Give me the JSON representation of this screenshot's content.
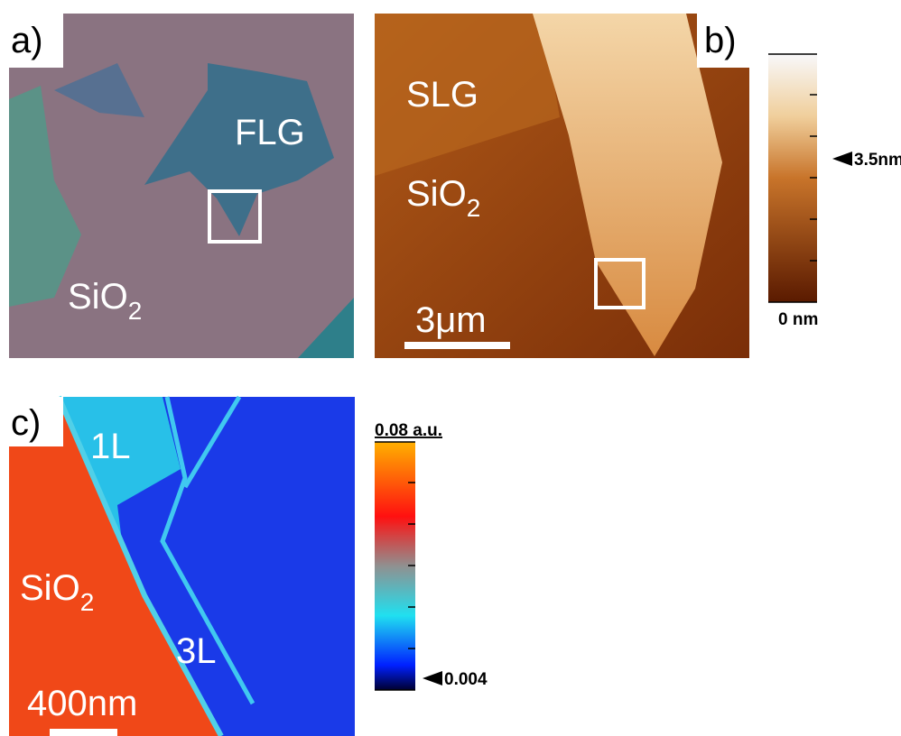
{
  "panels": [
    {
      "label": "a)",
      "annotations": [
        "FLG"
      ],
      "substrate": {
        "text": "SiO",
        "subscript": "2"
      }
    },
    {
      "label": "b)",
      "annotations": [
        "SLG"
      ],
      "substrate": {
        "text": "SiO",
        "subscript": "2"
      },
      "scale_bar": "3μm",
      "colorbar": {
        "marker": "3.5nm",
        "bottom": "0 nm"
      }
    },
    {
      "label": "c)",
      "annotations": [
        "1L",
        "3L"
      ],
      "substrate": {
        "text": "SiO",
        "subscript": "2"
      },
      "scale_bar": "400nm",
      "colorbar": {
        "top": "0.08 a.u.",
        "marker": "0.004"
      }
    }
  ]
}
